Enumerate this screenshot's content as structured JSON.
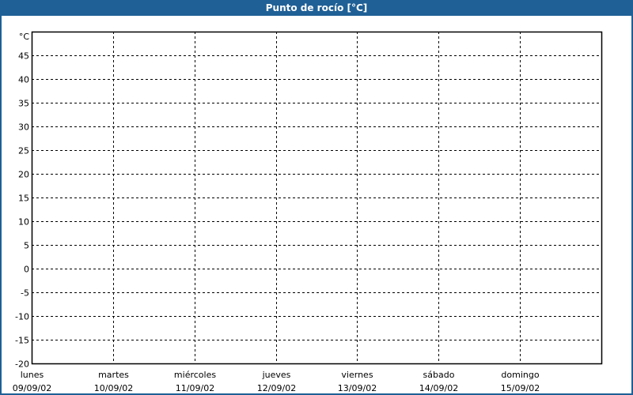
{
  "title": "Punto de rocío [°C]",
  "colors": {
    "titlebar": "#1f6096",
    "grid": "#000000",
    "background": "#ffffff"
  },
  "chart_data": {
    "type": "line",
    "title": "Punto de rocío [°C]",
    "ylabel": "°C",
    "ylim": [
      -20,
      50
    ],
    "yticks": [
      45,
      40,
      35,
      30,
      25,
      20,
      15,
      10,
      5,
      0,
      -5,
      -10,
      -15,
      -20
    ],
    "grid": true,
    "x_categories": [
      {
        "day": "lunes",
        "date": "09/09/02"
      },
      {
        "day": "martes",
        "date": "10/09/02"
      },
      {
        "day": "miércoles",
        "date": "11/09/02"
      },
      {
        "day": "jueves",
        "date": "12/09/02"
      },
      {
        "day": "viernes",
        "date": "13/09/02"
      },
      {
        "day": "sábado",
        "date": "14/09/02"
      },
      {
        "day": "domingo",
        "date": "15/09/02"
      }
    ],
    "series": []
  }
}
